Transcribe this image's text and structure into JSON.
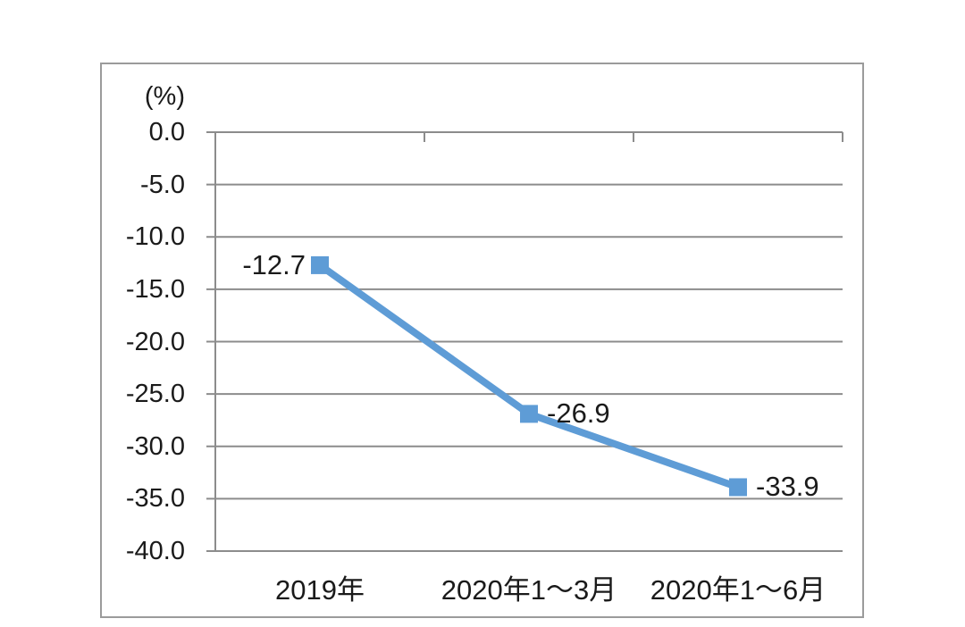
{
  "chart_data": {
    "type": "line",
    "unit_label": "(%)",
    "categories": [
      "2019年",
      "2020年1～3月",
      "2020年1～6月"
    ],
    "values": [
      -12.7,
      -26.9,
      -33.9
    ],
    "data_labels": [
      "-12.7",
      "-26.9",
      "-33.9"
    ],
    "y_ticks": [
      "0.0",
      "-5.0",
      "-10.0",
      "-15.0",
      "-20.0",
      "-25.0",
      "-30.0",
      "-35.0",
      "-40.0"
    ],
    "ylim": [
      -40,
      0
    ],
    "title": "",
    "xlabel": "",
    "ylabel": "(%)",
    "grid": true,
    "legend_position": "none",
    "marker": "square",
    "colors": {
      "line": "#5e9cd6",
      "marker": "#5e9cd6",
      "gridline": "#8c8c8c",
      "axis": "#8c8c8c",
      "frame_border": "#9b9b9b",
      "text": "#1a1a1a",
      "background": "#ffffff"
    }
  }
}
